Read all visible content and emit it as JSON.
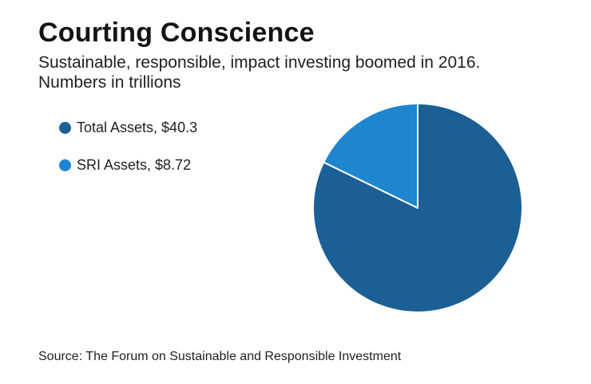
{
  "header": {
    "title": "Courting Conscience",
    "subtitle": "Sustainable, responsible, impact investing boomed in 2016. Numbers in trillions"
  },
  "chart_data": {
    "type": "pie",
    "legend_position": "left",
    "slices": [
      {
        "label": "Total Assets, $40.3",
        "value": 40.3,
        "color": "#1b5f94"
      },
      {
        "label": "SRI Assets, $8.72",
        "value": 8.72,
        "color": "#1e86cf"
      }
    ]
  },
  "footer": {
    "source": "Source: The Forum on Sustainable and Responsible Investment"
  }
}
